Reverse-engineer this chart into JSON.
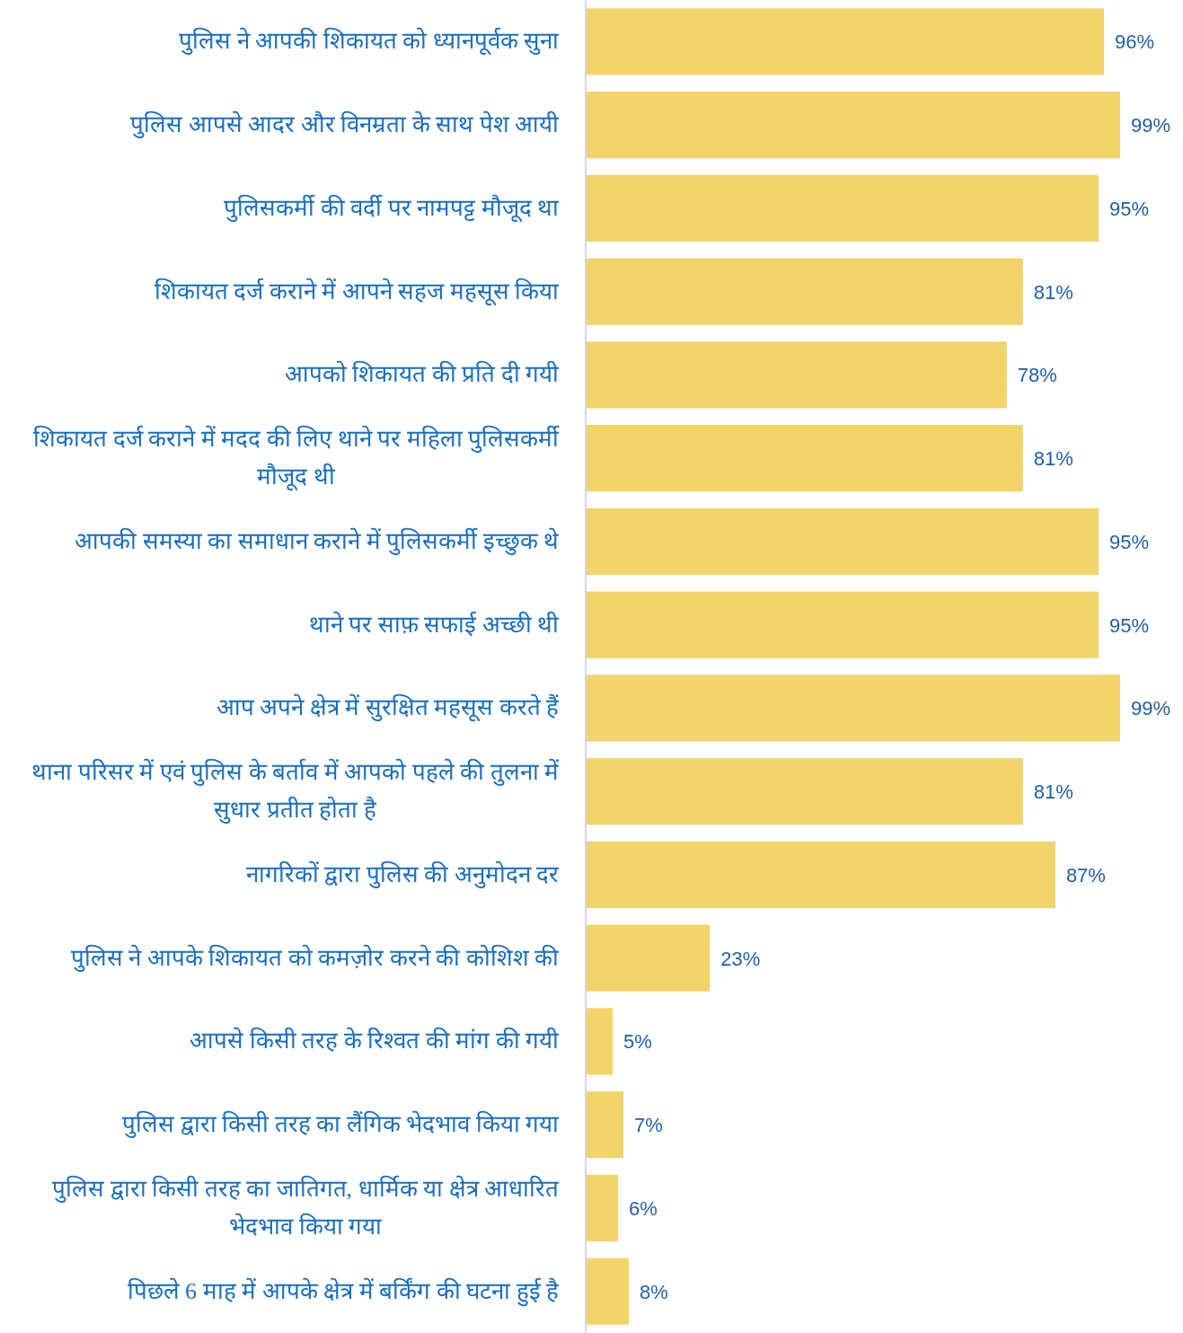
{
  "chart_data": {
    "type": "bar",
    "orientation": "horizontal",
    "color": "#f2d46b",
    "categories": [
      "पुलिस ने आपकी शिकायत को ध्यानपूर्वक सुना",
      "पुलिस आपसे आदर और विनम्रता के साथ पेश आयी",
      "पुलिसकर्मी की वर्दी पर नामपट्ट मौजूद था",
      "शिकायत दर्ज कराने में आपने सहज महसूस किया",
      "आपको शिकायत की प्रति दी गयी",
      "शिकायत दर्ज कराने में मदद की लिए थाने पर महिला पुलिसकर्मी मौजूद थी",
      "आपकी समस्या का समाधान कराने में पुलिसकर्मी इच्छुक थे",
      "थाने पर साफ़ सफाई अच्छी थी",
      "आप अपने क्षेत्र में सुरक्षित महसूस करते हैं",
      "थाना परिसर में एवं पुलिस के बर्ताव में आपको पहले की तुलना में सुधार प्रतीत होता है",
      "नागरिकों द्वारा पुलिस की अनुमोदन दर",
      "पुलिस ने आपके शिकायत को कमज़ोर करने की कोशिश की",
      "आपसे किसी तरह के रिश्वत की मांग की गयी",
      "पुलिस द्वारा किसी तरह का लैंगिक भेदभाव किया गया",
      "पुलिस द्वारा किसी तरह का जातिगत, धार्मिक या क्षेत्र आधारित भेदभाव किया गया",
      "पिछले 6 माह में आपके क्षेत्र में बर्किंग की घटना हुई है"
    ],
    "values": [
      96,
      99,
      95,
      81,
      78,
      81,
      95,
      95,
      99,
      81,
      87,
      23,
      5,
      7,
      6,
      8
    ],
    "value_labels": [
      "96%",
      "99%",
      "95%",
      "81%",
      "78%",
      "81%",
      "95%",
      "95%",
      "99%",
      "81%",
      "87%",
      "23%",
      "5%",
      "7%",
      "6%",
      "8%"
    ]
  }
}
